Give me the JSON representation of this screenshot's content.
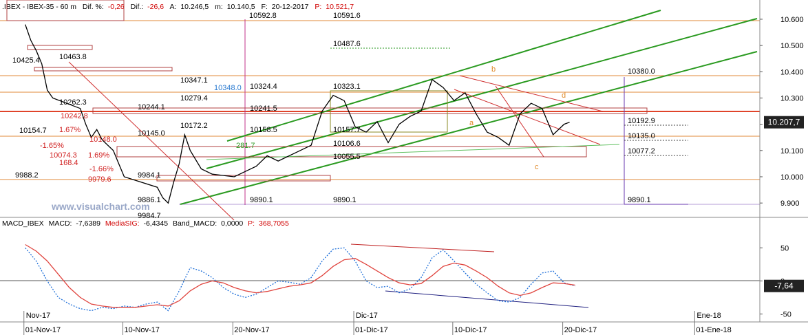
{
  "header": {
    "symbol": ".IBEX - IBEX-35 - 60 m",
    "dif_pct_label": "Dif. %:",
    "dif_pct": "-0,26",
    "dif_label": "Dif.:",
    "dif": "-26,6",
    "a_label": "A:",
    "a": "10.246,5",
    "m_label": "m:",
    "m": "10.140,5",
    "f_label": "F:",
    "f": "20-12-2017",
    "p_label": "P:",
    "p": "10.521,7"
  },
  "macd_header": {
    "name": "MACD_IBEX",
    "macd_label": "MACD:",
    "macd": "-7,6389",
    "sig_label": "MediaSIG:",
    "sig": "-6,4345",
    "band_label": "Band_MACD:",
    "band": "0,0000",
    "p_label": "P:",
    "p": "368,7055"
  },
  "watermark": "www.visualchart.com",
  "chart_data": [
    {
      "type": "line",
      "color": "#000000",
      "x": [
        1,
        1.5,
        2,
        2.5,
        3,
        3.5,
        6,
        6.5,
        7,
        7.5,
        8,
        9,
        9.5,
        10,
        13,
        13.5,
        14,
        14.5,
        15,
        15.5,
        16,
        17,
        18,
        20,
        21,
        22,
        23,
        24,
        26,
        27,
        28,
        29,
        30,
        31,
        32,
        33,
        34,
        35,
        36,
        37,
        38,
        39,
        40,
        41,
        42,
        43,
        44,
        45,
        46,
        47,
        48,
        49,
        50,
        50.5
      ],
      "values": [
        10580,
        10520,
        10480,
        10430,
        10330,
        10300,
        10260,
        10200,
        10150,
        10180,
        10140,
        10100,
        10050,
        10000,
        9960,
        9920,
        9900,
        9980,
        10050,
        10160,
        10100,
        10030,
        10010,
        10000,
        10020,
        10040,
        10080,
        10060,
        10100,
        10120,
        10250,
        10310,
        10290,
        10190,
        10170,
        10210,
        10130,
        10200,
        10230,
        10250,
        10370,
        10340,
        10290,
        10320,
        10240,
        10170,
        10150,
        10120,
        10240,
        10280,
        10260,
        10160,
        10200,
        10207.7
      ],
      "xlim": [
        -1.3,
        67.8
      ],
      "xticks": [
        {
          "value": 1,
          "label": "01-Nov-17"
        },
        {
          "value": 10,
          "label": "10-Nov-17"
        },
        {
          "value": 20,
          "label": "20-Nov-17"
        },
        {
          "value": 31,
          "label": "01-Dic-17"
        },
        {
          "value": 40,
          "label": "10-Dic-17"
        },
        {
          "value": 50,
          "label": "20-Dic-17"
        },
        {
          "value": 62,
          "label": "01-Ene-18"
        }
      ],
      "ylim": [
        9848,
        10647
      ],
      "yticks": [
        {
          "value": 9900,
          "label": "9.900"
        },
        {
          "value": 10000,
          "label": "10.000"
        },
        {
          "value": 10100,
          "label": "10.100"
        },
        {
          "value": 10200,
          "label": "10.200"
        },
        {
          "value": 10300,
          "label": "10.300"
        },
        {
          "value": 10400,
          "label": "10.400"
        },
        {
          "value": 10500,
          "label": "10.500"
        },
        {
          "value": 10600,
          "label": "10.600"
        }
      ],
      "last_price": {
        "value": 10207.7,
        "label": "10.207,7"
      },
      "annotations": [
        "10592.8",
        "10591.6",
        "10487.6",
        "10380.0",
        "10347.1",
        "10348.0",
        "10324.4",
        "10323.1",
        "10279.4",
        "10244.1",
        "10241.5",
        "10242.8",
        "10172.2",
        "10158.5",
        "10157.7",
        "10192.9",
        "10154.7",
        "10145.0",
        "10148.0",
        "10135.0",
        "10106.6",
        "10077.2",
        "10055.5",
        "10074.3",
        "9988.2",
        "9979.6",
        "9984.1",
        "9886.1",
        "9890.1",
        "9890.1",
        "9890.1",
        "9984.7",
        "168.4",
        "1.67%",
        "-1.65%",
        "-1.66%",
        "1.69%",
        "281.7",
        "10463.8",
        "10425.4",
        "10262.3",
        "a",
        "b",
        "c",
        "d"
      ]
    },
    {
      "type": "line",
      "x": [
        1,
        2,
        3,
        4,
        5,
        6,
        7,
        8,
        9,
        10,
        11,
        12,
        13,
        14,
        15,
        16,
        17,
        18,
        19,
        20,
        21,
        22,
        23,
        24,
        25,
        26,
        27,
        28,
        29,
        30,
        31,
        32,
        33,
        34,
        35,
        36,
        37,
        38,
        39,
        40,
        41,
        42,
        43,
        44,
        45,
        46,
        47,
        48,
        49,
        50,
        51
      ],
      "series": [
        {
          "color": "#1e6fd9",
          "values": [
            50,
            30,
            0,
            -25,
            -35,
            -42,
            -45,
            -40,
            -42,
            -38,
            -40,
            -35,
            -32,
            -45,
            -15,
            20,
            15,
            5,
            -10,
            -20,
            -25,
            -20,
            -10,
            0,
            -2,
            -5,
            5,
            30,
            48,
            50,
            30,
            0,
            -10,
            -8,
            -18,
            -12,
            5,
            35,
            47,
            30,
            12,
            -5,
            -18,
            -30,
            -32,
            -25,
            -5,
            12,
            15,
            -3,
            -7.64
          ]
        },
        {
          "color": "#e0443e",
          "values": [
            55,
            45,
            30,
            10,
            -10,
            -25,
            -35,
            -38,
            -40,
            -40,
            -40,
            -38,
            -36,
            -38,
            -30,
            -15,
            -5,
            0,
            -3,
            -10,
            -15,
            -18,
            -16,
            -12,
            -8,
            -6,
            -3,
            8,
            22,
            32,
            34,
            25,
            15,
            5,
            -3,
            -6,
            -4,
            8,
            22,
            27,
            24,
            15,
            5,
            -8,
            -18,
            -22,
            -18,
            -10,
            -3,
            -4,
            -6.43
          ]
        }
      ],
      "xlim": [
        -1.3,
        67.8
      ],
      "xticks": [
        {
          "value": 1,
          "label": "Nov-17"
        },
        {
          "value": 31,
          "label": "Dic-17"
        },
        {
          "value": 62,
          "label": "Ene-18"
        }
      ],
      "ylim": [
        -61,
        94
      ],
      "yticks": [
        -50,
        0,
        50
      ],
      "last_value": {
        "value": -7.64,
        "label": "-7,64"
      }
    }
  ]
}
